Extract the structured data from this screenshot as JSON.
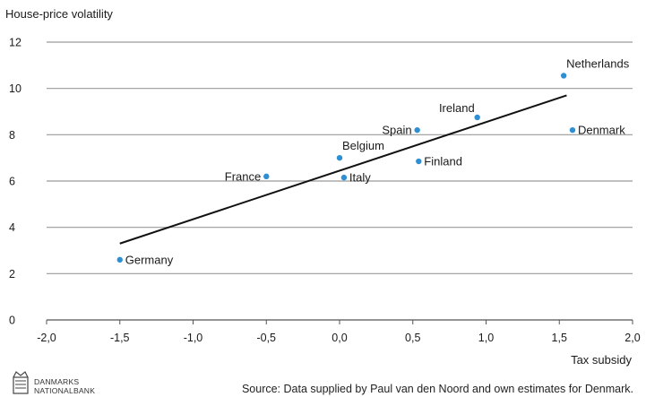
{
  "chart_data": {
    "type": "scatter",
    "ylabel": "House-price volatility",
    "xlabel": "Tax subsidy",
    "xlim": [
      -2.0,
      2.0
    ],
    "ylim": [
      0,
      12
    ],
    "x_ticks": [
      "-2,0",
      "-1,5",
      "-1,0",
      "-0,5",
      "0,0",
      "0,5",
      "1,0",
      "1,5",
      "2,0"
    ],
    "y_ticks": [
      "0",
      "2",
      "4",
      "6",
      "8",
      "10",
      "12"
    ],
    "grid": "horizontal",
    "point_color": "#2f8fd3",
    "points": [
      {
        "label": "Germany",
        "x": -1.5,
        "y": 2.6,
        "label_side": "right"
      },
      {
        "label": "France",
        "x": -0.5,
        "y": 6.2,
        "label_side": "left"
      },
      {
        "label": "Belgium",
        "x": 0.0,
        "y": 7.0,
        "label_side": "above-right"
      },
      {
        "label": "Italy",
        "x": 0.03,
        "y": 6.15,
        "label_side": "right"
      },
      {
        "label": "Spain",
        "x": 0.53,
        "y": 8.2,
        "label_side": "left"
      },
      {
        "label": "Finland",
        "x": 0.54,
        "y": 6.85,
        "label_side": "right"
      },
      {
        "label": "Ireland",
        "x": 0.94,
        "y": 8.75,
        "label_side": "above-left"
      },
      {
        "label": "Netherlands",
        "x": 1.53,
        "y": 10.55,
        "label_side": "above-right"
      },
      {
        "label": "Denmark",
        "x": 1.59,
        "y": 8.2,
        "label_side": "right"
      }
    ],
    "trend_line": {
      "x": [
        -1.5,
        1.55
      ],
      "y": [
        3.3,
        9.7
      ]
    }
  },
  "source": "Source: Data supplied by Paul van den Noord and own estimates for Denmark.",
  "logo": {
    "line1": "DANMARKS",
    "line2": "NATIONALBANK"
  }
}
